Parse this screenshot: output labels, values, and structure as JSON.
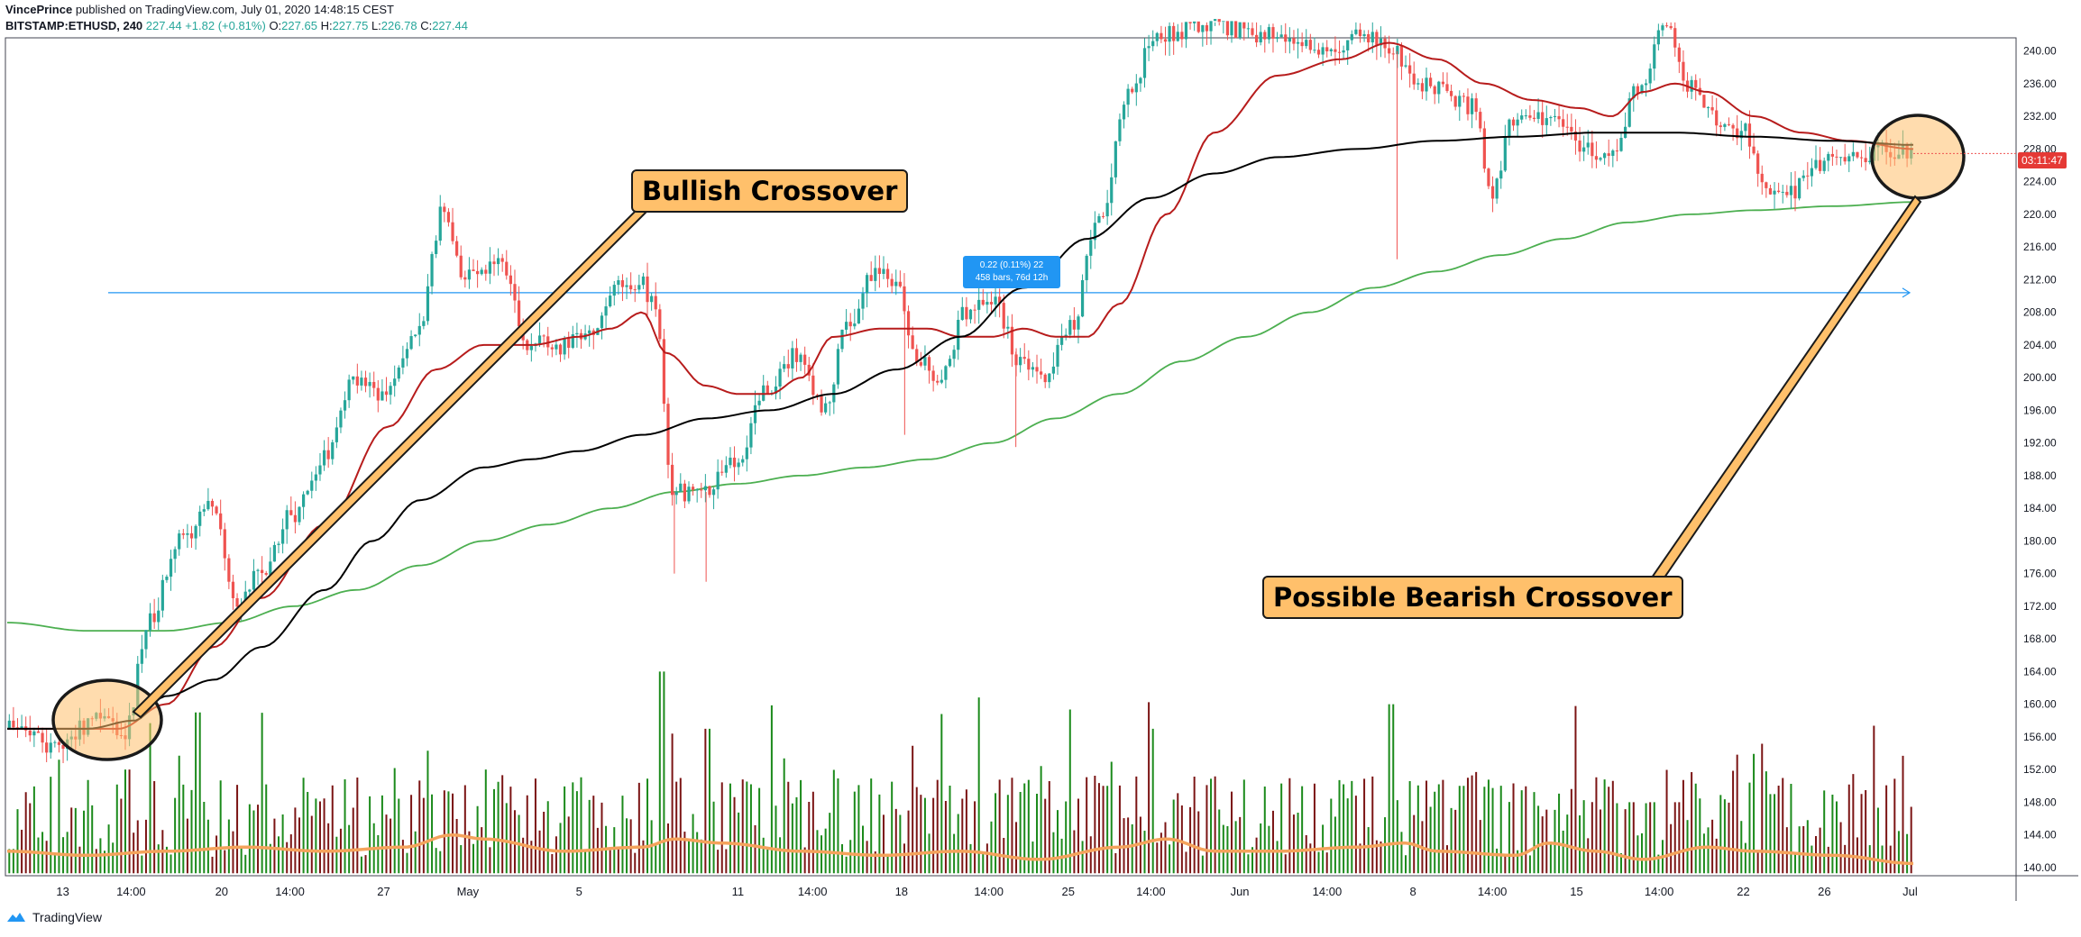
{
  "header": {
    "user": "VincePrince",
    "published": "published on TradingView.com, July 01, 2020 14:48:15 CEST",
    "symbol": "BITSTAMP:ETHUSD, 240",
    "last": "227.44",
    "change": "+1.82 (+0.81%)",
    "open_label": "O:",
    "open": "227.65",
    "high_label": "H:",
    "high": "227.75",
    "low_label": "L:",
    "low": "226.78",
    "close_label": "C:",
    "close": "227.44"
  },
  "footer": {
    "brand": "TradingView"
  },
  "annotations": {
    "bullish": "Bullish Crossover",
    "bearish": "Possible Bearish Crossover",
    "measure_line1": "0.22 (0.11%) 22",
    "measure_line2": "458 bars, 76d 12h",
    "countdown": "03:11:47"
  },
  "colors": {
    "up": "#26a69a",
    "down": "#ef5350",
    "ma_fast": "#b71c1c",
    "ma_mid": "#000000",
    "ma_slow": "#4caf50",
    "vol_up": "#1b8a1b",
    "vol_down": "#7b1414",
    "vol_ma": "#f4a35c",
    "hline": "#2196f3",
    "highlight": "#ffc06b"
  },
  "chart_data": {
    "type": "candlestick",
    "y_ticks": [
      "240.00",
      "236.00",
      "232.00",
      "228.00",
      "224.00",
      "220.00",
      "216.00",
      "212.00",
      "208.00",
      "204.00",
      "200.00",
      "196.00",
      "192.00",
      "188.00",
      "184.00",
      "180.00",
      "176.00",
      "172.00",
      "168.00",
      "164.00",
      "160.00",
      "156.00",
      "152.00",
      "148.00",
      "144.00",
      "140.00"
    ],
    "ylim": [
      139,
      241.5
    ],
    "x_ticks": [
      {
        "label": "13",
        "t": 0.035
      },
      {
        "label": "14:00",
        "t": 0.078
      },
      {
        "label": "20",
        "t": 0.135
      },
      {
        "label": "14:00",
        "t": 0.178
      },
      {
        "label": "27",
        "t": 0.237
      },
      {
        "label": "May",
        "t": 0.29
      },
      {
        "label": "5",
        "t": 0.36
      },
      {
        "label": "11",
        "t": 0.46
      },
      {
        "label": "14:00",
        "t": 0.507
      },
      {
        "label": "18",
        "t": 0.563
      },
      {
        "label": "14:00",
        "t": 0.618
      },
      {
        "label": "25",
        "t": 0.668
      },
      {
        "label": "14:00",
        "t": 0.72
      },
      {
        "label": "Jun",
        "t": 0.776
      },
      {
        "label": "14:00",
        "t": 0.831
      },
      {
        "label": "8",
        "t": 0.885
      },
      {
        "label": "14:00",
        "t": 0.935
      },
      {
        "label": "15",
        "t": 0.988
      },
      {
        "label": "14:00",
        "t": 1.04
      },
      {
        "label": "22",
        "t": 1.093
      },
      {
        "label": "26",
        "t": 1.144
      },
      {
        "label": "Jul",
        "t": 1.198
      }
    ],
    "price_anchors": [
      [
        0,
        157
      ],
      [
        0.03,
        155
      ],
      [
        0.06,
        158
      ],
      [
        0.075,
        156
      ],
      [
        0.09,
        170
      ],
      [
        0.11,
        180
      ],
      [
        0.13,
        185
      ],
      [
        0.145,
        172
      ],
      [
        0.16,
        176
      ],
      [
        0.18,
        183
      ],
      [
        0.2,
        190
      ],
      [
        0.22,
        200
      ],
      [
        0.24,
        198
      ],
      [
        0.26,
        205
      ],
      [
        0.275,
        220
      ],
      [
        0.29,
        212
      ],
      [
        0.31,
        214
      ],
      [
        0.33,
        204
      ],
      [
        0.35,
        204
      ],
      [
        0.37,
        206
      ],
      [
        0.385,
        211
      ],
      [
        0.4,
        212
      ],
      [
        0.41,
        208
      ],
      [
        0.42,
        186
      ],
      [
        0.44,
        186
      ],
      [
        0.46,
        190
      ],
      [
        0.48,
        199
      ],
      [
        0.5,
        203
      ],
      [
        0.515,
        196
      ],
      [
        0.53,
        206
      ],
      [
        0.545,
        213
      ],
      [
        0.56,
        212
      ],
      [
        0.575,
        202
      ],
      [
        0.59,
        200
      ],
      [
        0.605,
        208
      ],
      [
        0.62,
        210
      ],
      [
        0.64,
        202
      ],
      [
        0.655,
        200
      ],
      [
        0.67,
        206
      ],
      [
        0.69,
        220
      ],
      [
        0.705,
        234
      ],
      [
        0.725,
        242
      ],
      [
        0.76,
        243
      ],
      [
        0.8,
        242
      ],
      [
        0.83,
        240
      ],
      [
        0.86,
        242
      ],
      [
        0.875,
        240
      ],
      [
        0.89,
        236
      ],
      [
        0.905,
        235
      ],
      [
        0.925,
        233
      ],
      [
        0.935,
        222
      ],
      [
        0.95,
        232
      ],
      [
        0.975,
        232
      ],
      [
        0.995,
        228
      ],
      [
        1.01,
        227
      ],
      [
        1.03,
        236
      ],
      [
        1.045,
        243
      ],
      [
        1.06,
        236
      ],
      [
        1.08,
        231
      ],
      [
        1.095,
        230
      ],
      [
        1.11,
        222
      ],
      [
        1.125,
        223
      ],
      [
        1.14,
        226
      ],
      [
        1.165,
        227
      ],
      [
        1.185,
        228
      ],
      [
        1.2,
        227.4
      ]
    ],
    "ma_fast_anchors": [
      [
        0,
        157
      ],
      [
        0.07,
        157
      ],
      [
        0.1,
        160
      ],
      [
        0.13,
        167
      ],
      [
        0.16,
        173
      ],
      [
        0.2,
        182
      ],
      [
        0.24,
        194
      ],
      [
        0.27,
        201
      ],
      [
        0.3,
        204
      ],
      [
        0.33,
        204
      ],
      [
        0.36,
        205
      ],
      [
        0.38,
        206
      ],
      [
        0.4,
        208
      ],
      [
        0.415,
        203
      ],
      [
        0.44,
        199
      ],
      [
        0.46,
        198
      ],
      [
        0.48,
        198
      ],
      [
        0.5,
        200
      ],
      [
        0.52,
        205
      ],
      [
        0.55,
        206
      ],
      [
        0.58,
        206
      ],
      [
        0.6,
        205
      ],
      [
        0.62,
        205
      ],
      [
        0.64,
        206
      ],
      [
        0.66,
        205
      ],
      [
        0.68,
        205
      ],
      [
        0.7,
        209
      ],
      [
        0.73,
        220
      ],
      [
        0.76,
        230
      ],
      [
        0.8,
        237
      ],
      [
        0.84,
        239
      ],
      [
        0.87,
        241
      ],
      [
        0.9,
        239
      ],
      [
        0.93,
        236
      ],
      [
        0.96,
        234
      ],
      [
        0.99,
        233
      ],
      [
        1.01,
        232
      ],
      [
        1.03,
        235
      ],
      [
        1.05,
        236
      ],
      [
        1.07,
        235
      ],
      [
        1.1,
        232
      ],
      [
        1.13,
        230
      ],
      [
        1.16,
        229
      ],
      [
        1.2,
        228
      ]
    ],
    "ma_mid_anchors": [
      [
        0,
        157
      ],
      [
        0.05,
        157
      ],
      [
        0.08,
        158
      ],
      [
        0.1,
        161
      ],
      [
        0.13,
        163
      ],
      [
        0.16,
        167
      ],
      [
        0.2,
        174
      ],
      [
        0.23,
        180
      ],
      [
        0.26,
        185
      ],
      [
        0.3,
        189
      ],
      [
        0.33,
        190
      ],
      [
        0.36,
        191
      ],
      [
        0.4,
        193
      ],
      [
        0.44,
        195
      ],
      [
        0.48,
        196
      ],
      [
        0.52,
        198
      ],
      [
        0.56,
        201
      ],
      [
        0.6,
        205
      ],
      [
        0.64,
        211
      ],
      [
        0.68,
        217
      ],
      [
        0.72,
        222
      ],
      [
        0.76,
        225
      ],
      [
        0.8,
        227
      ],
      [
        0.85,
        228
      ],
      [
        0.9,
        229
      ],
      [
        0.95,
        229.5
      ],
      [
        1.0,
        230
      ],
      [
        1.05,
        230
      ],
      [
        1.1,
        229.5
      ],
      [
        1.15,
        229
      ],
      [
        1.2,
        228.5
      ]
    ],
    "ma_slow_anchors": [
      [
        0,
        170
      ],
      [
        0.05,
        169
      ],
      [
        0.1,
        169
      ],
      [
        0.14,
        170
      ],
      [
        0.18,
        172
      ],
      [
        0.22,
        174
      ],
      [
        0.26,
        177
      ],
      [
        0.3,
        180
      ],
      [
        0.34,
        182
      ],
      [
        0.38,
        184
      ],
      [
        0.42,
        186
      ],
      [
        0.46,
        187
      ],
      [
        0.5,
        188
      ],
      [
        0.54,
        189
      ],
      [
        0.58,
        190
      ],
      [
        0.62,
        192
      ],
      [
        0.66,
        195
      ],
      [
        0.7,
        198
      ],
      [
        0.74,
        202
      ],
      [
        0.78,
        205
      ],
      [
        0.82,
        208
      ],
      [
        0.86,
        211
      ],
      [
        0.9,
        213
      ],
      [
        0.94,
        215
      ],
      [
        0.98,
        217
      ],
      [
        1.02,
        219
      ],
      [
        1.06,
        220
      ],
      [
        1.1,
        220.5
      ],
      [
        1.15,
        221
      ],
      [
        1.2,
        221.5
      ]
    ],
    "hline_price": 210.4,
    "volume": {
      "baseline": 139.3,
      "top": 168,
      "spikes": [
        [
          0.12,
          159
        ],
        [
          0.075,
          152
        ],
        [
          0.3,
          152
        ],
        [
          0.41,
          164
        ],
        [
          0.44,
          157
        ],
        [
          0.69,
          150
        ],
        [
          0.72,
          157
        ],
        [
          0.87,
          160
        ],
        [
          0.915,
          150
        ],
        [
          1.035,
          148
        ],
        [
          1.05,
          148
        ],
        [
          1.11,
          149
        ],
        [
          1.02,
          148
        ]
      ],
      "ma_anchors": [
        [
          0,
          142
        ],
        [
          0.05,
          141.5
        ],
        [
          0.1,
          142
        ],
        [
          0.15,
          142.5
        ],
        [
          0.2,
          142
        ],
        [
          0.25,
          142.5
        ],
        [
          0.28,
          144
        ],
        [
          0.3,
          143.5
        ],
        [
          0.35,
          142
        ],
        [
          0.4,
          142.5
        ],
        [
          0.42,
          143.5
        ],
        [
          0.45,
          143
        ],
        [
          0.5,
          142
        ],
        [
          0.55,
          141.5
        ],
        [
          0.6,
          142
        ],
        [
          0.65,
          141
        ],
        [
          0.7,
          142.5
        ],
        [
          0.73,
          143.5
        ],
        [
          0.76,
          142
        ],
        [
          0.8,
          142
        ],
        [
          0.85,
          142.5
        ],
        [
          0.88,
          143
        ],
        [
          0.9,
          142
        ],
        [
          0.95,
          141.5
        ],
        [
          0.97,
          143
        ],
        [
          1.0,
          142
        ],
        [
          1.03,
          141
        ],
        [
          1.07,
          142.5
        ],
        [
          1.1,
          142
        ],
        [
          1.15,
          141.5
        ],
        [
          1.2,
          140.5
        ]
      ]
    }
  }
}
